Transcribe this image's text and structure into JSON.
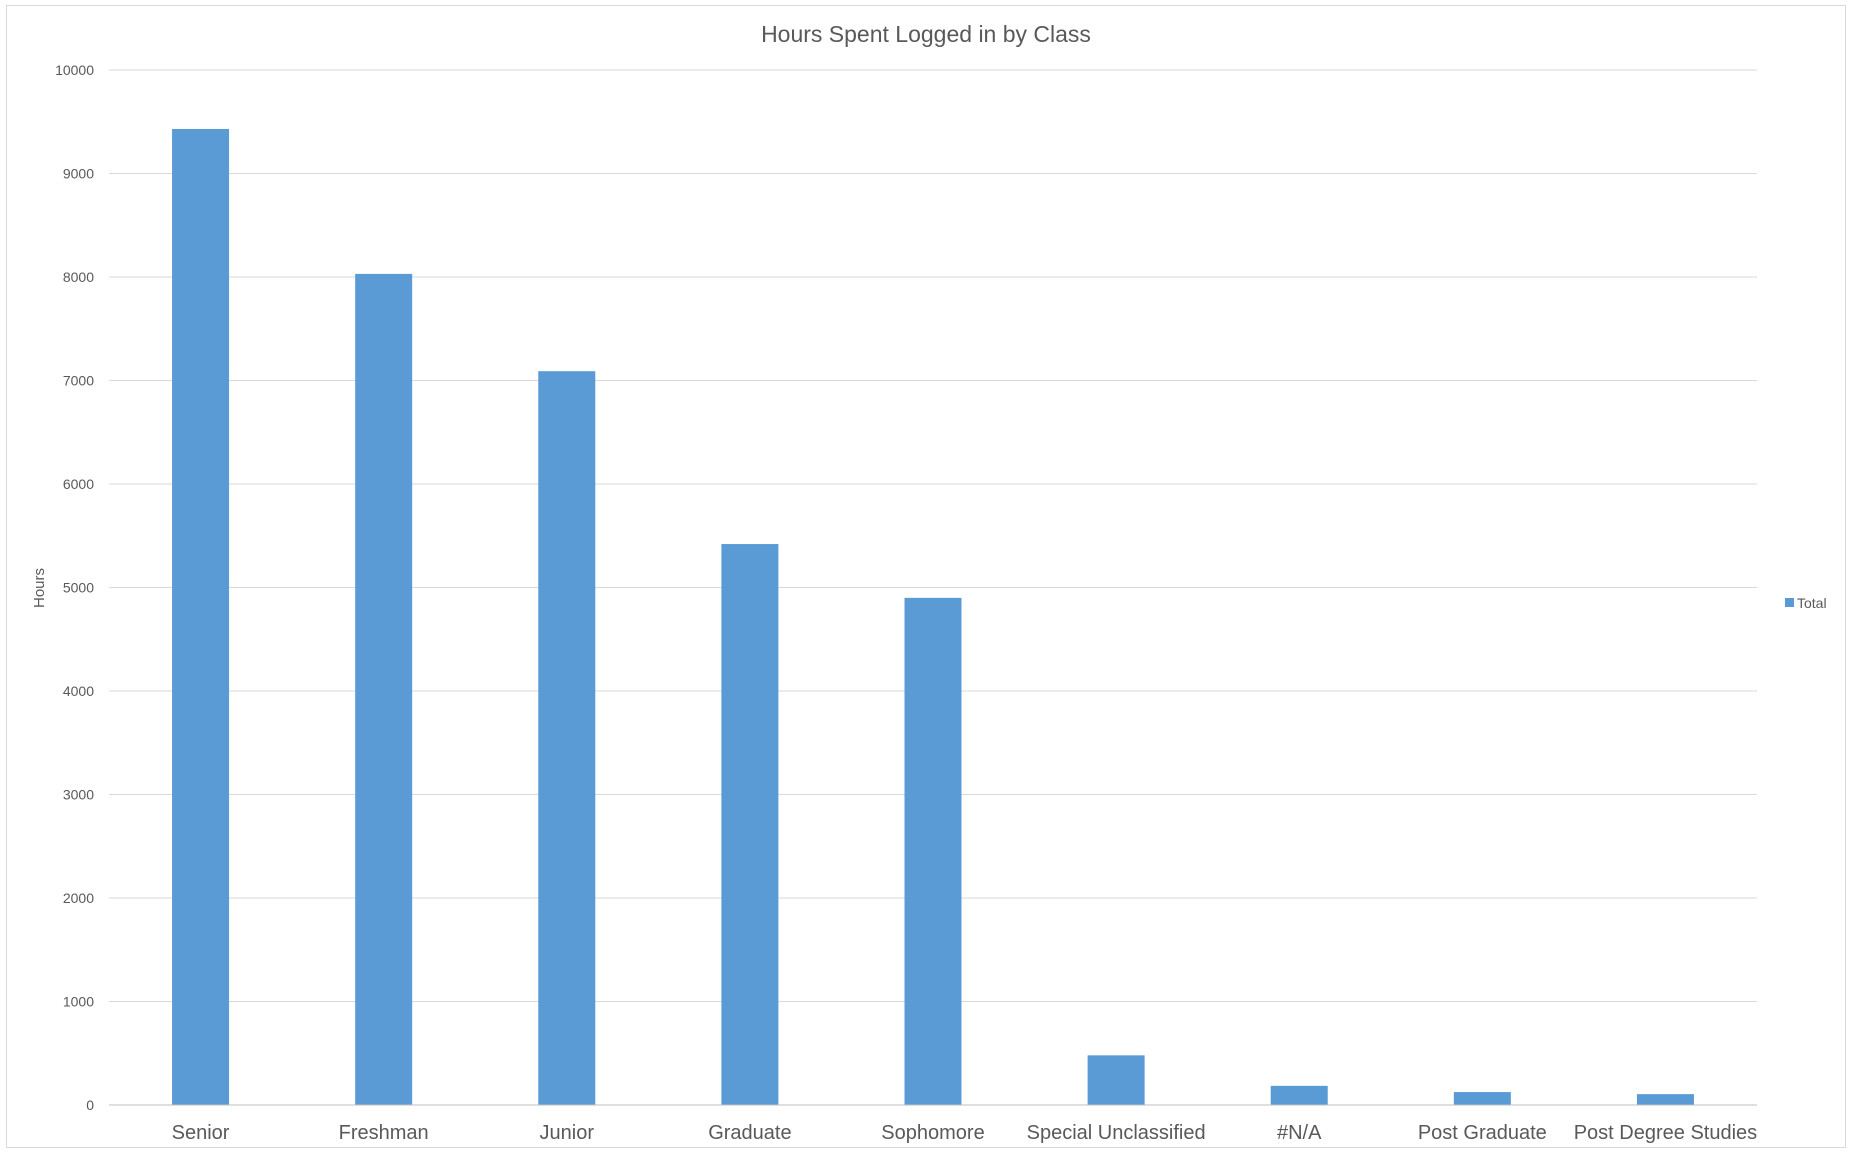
{
  "chart_data": {
    "type": "bar",
    "title": "Hours Spent Logged in by Class",
    "xlabel": "",
    "ylabel": "Hours",
    "ylim": [
      0,
      10000
    ],
    "yticks": [
      "0",
      "1000",
      "2000",
      "3000",
      "4000",
      "5000",
      "6000",
      "7000",
      "8000",
      "9000",
      "10000"
    ],
    "categories": [
      "Senior",
      "Freshman",
      "Junior",
      "Graduate",
      "Sophomore",
      "Special Unclassified",
      "#N/A",
      "Post Graduate",
      "Post Degree Studies"
    ],
    "series": [
      {
        "name": "Total",
        "color": "#5b9bd5",
        "values": [
          9430,
          8030,
          7090,
          5420,
          4900,
          480,
          185,
          125,
          105
        ]
      }
    ],
    "grid": true,
    "legend": "right"
  }
}
